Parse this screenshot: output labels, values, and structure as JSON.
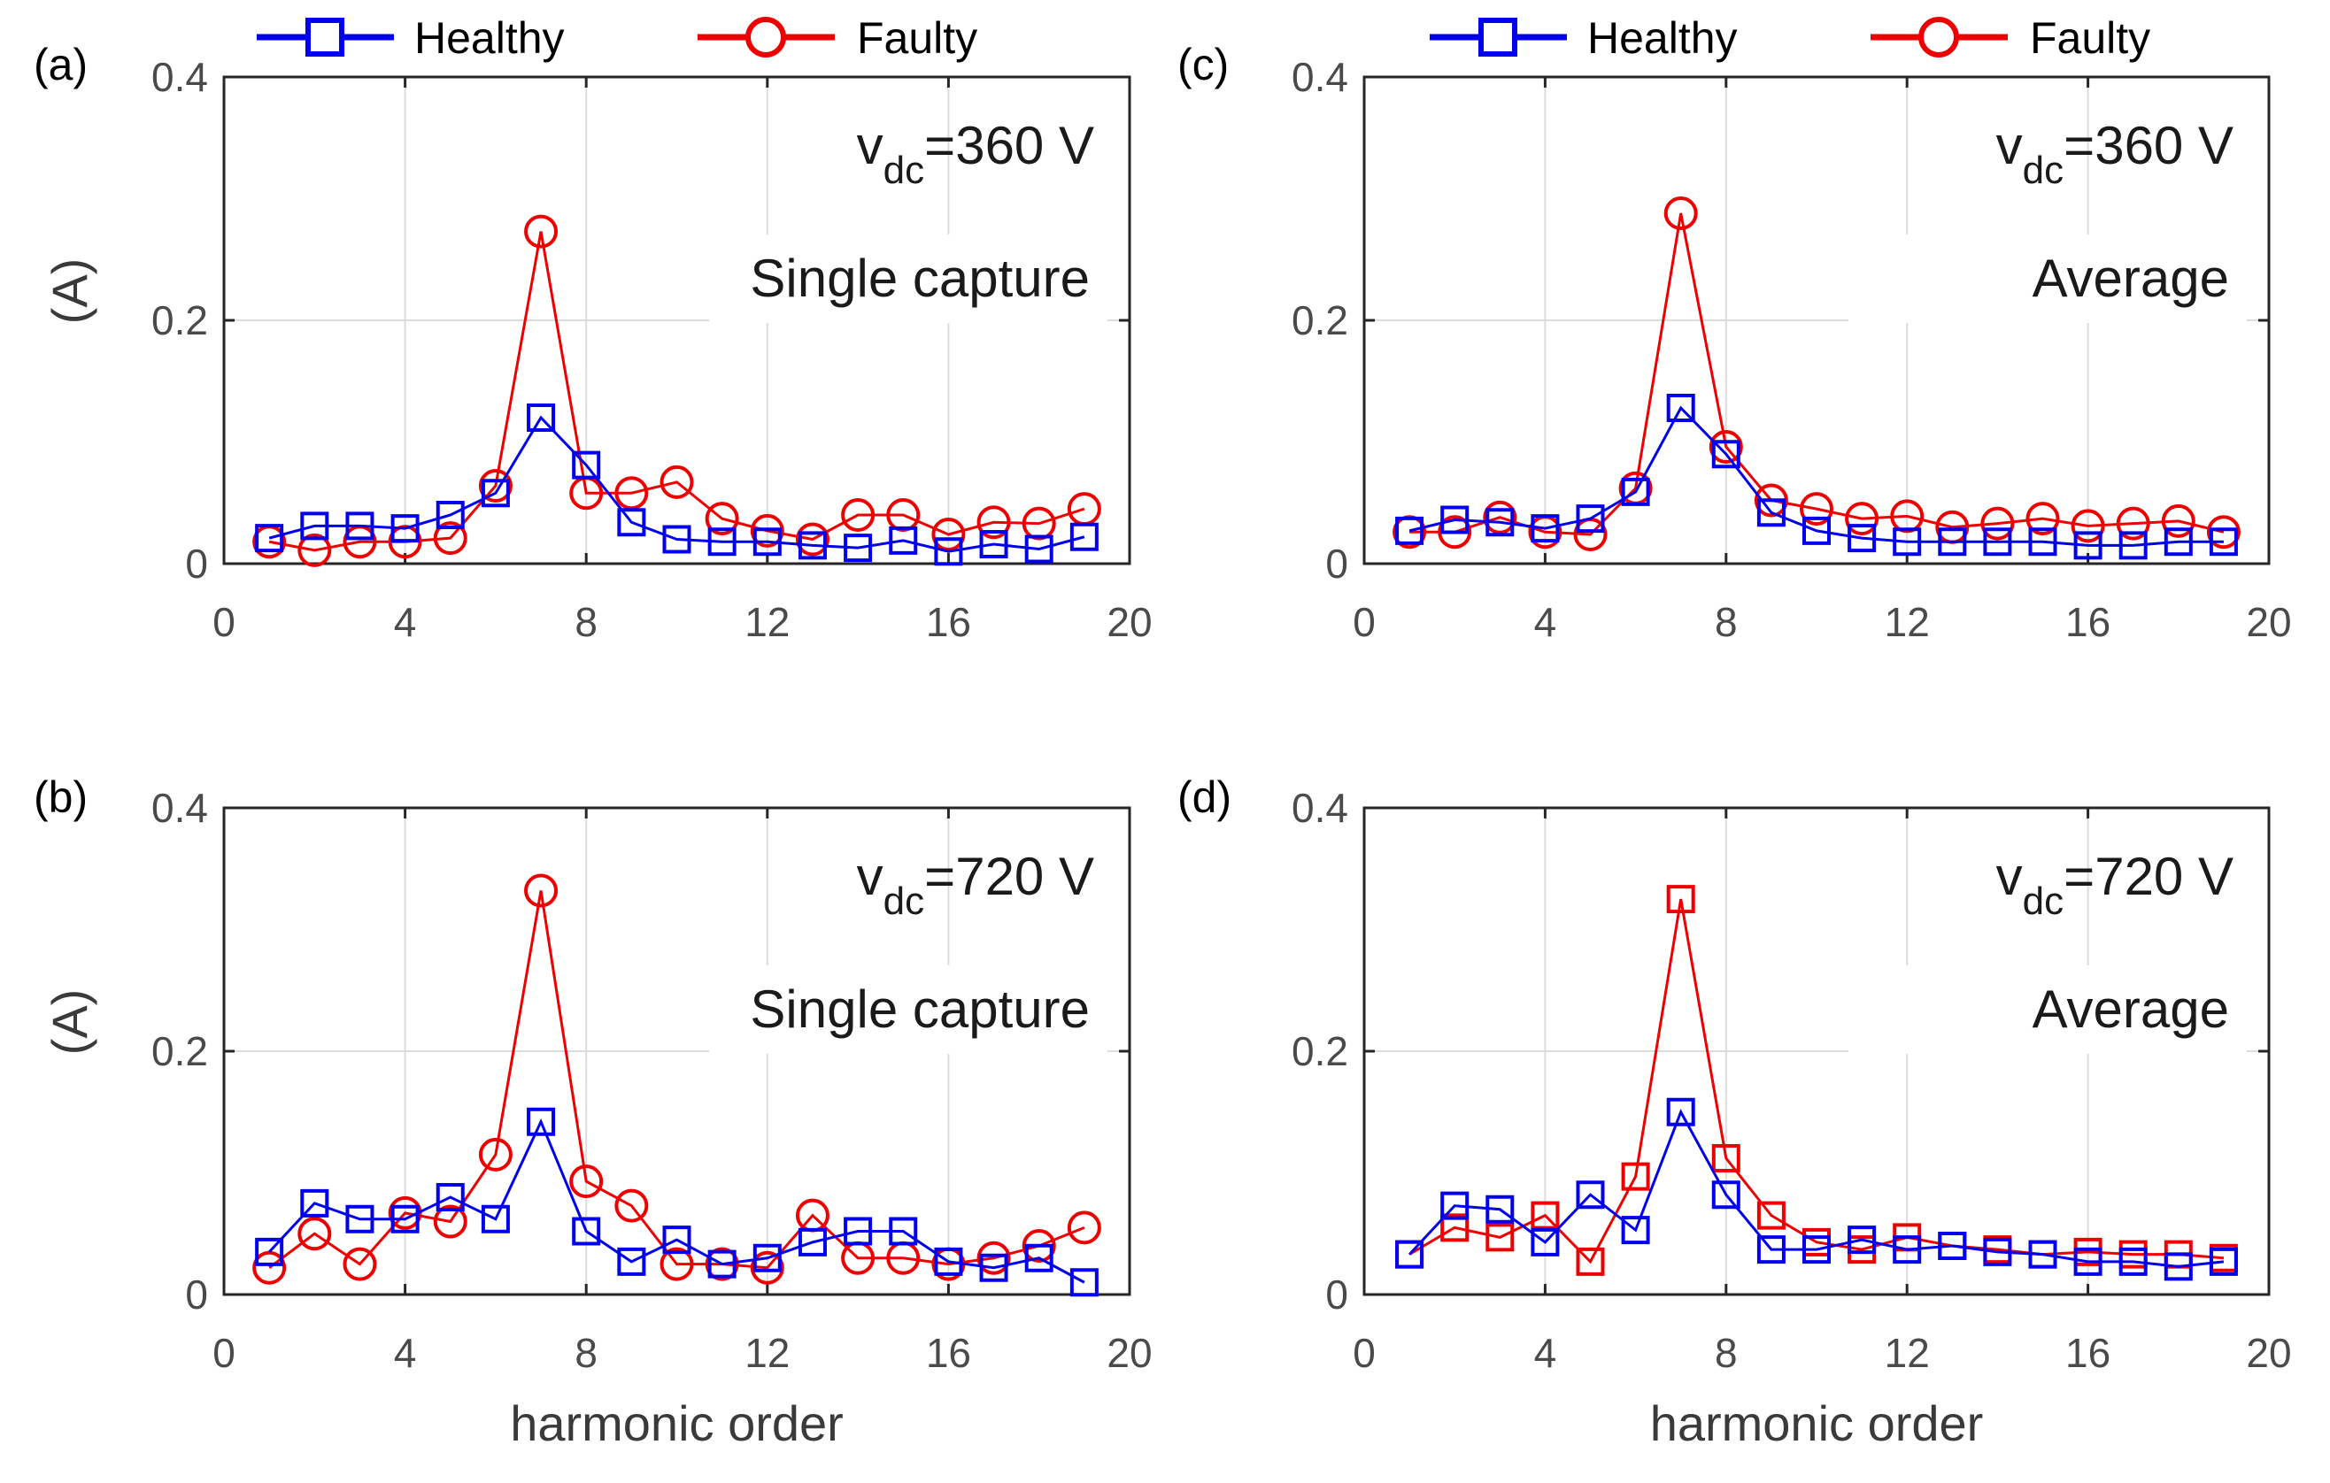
{
  "legend": {
    "healthy_label": "Healthy",
    "faulty_label": "Faulty",
    "healthy_color": "#0000ee",
    "faulty_color": "#ee0000"
  },
  "xlabel": "harmonic order",
  "ylabel": "(A)",
  "chart_data": [
    {
      "type": "line",
      "panel": "(a)",
      "annotation_v": "v",
      "annotation_sub": "dc",
      "annotation_eq": "=360 V",
      "annotation_mode": "Single capture",
      "xlim": [
        0,
        20
      ],
      "ylim": [
        0,
        0.4
      ],
      "xticks": [
        "0",
        "4",
        "8",
        "12",
        "16",
        "20"
      ],
      "yticks": [
        "0",
        "0.2",
        "0.4"
      ],
      "x": [
        1,
        2,
        3,
        4,
        5,
        6,
        7,
        8,
        9,
        10,
        11,
        12,
        13,
        14,
        15,
        16,
        17,
        18,
        19
      ],
      "series": [
        {
          "name": "Healthy",
          "marker": "square",
          "values": [
            0.021,
            0.031,
            0.031,
            0.029,
            0.04,
            0.058,
            0.12,
            0.081,
            0.034,
            0.02,
            0.018,
            0.018,
            0.015,
            0.013,
            0.019,
            0.01,
            0.016,
            0.012,
            0.022
          ]
        },
        {
          "name": "Faulty",
          "marker": "circle",
          "values": [
            0.018,
            0.011,
            0.018,
            0.018,
            0.021,
            0.064,
            0.273,
            0.058,
            0.058,
            0.067,
            0.037,
            0.027,
            0.02,
            0.04,
            0.04,
            0.024,
            0.034,
            0.033,
            0.045
          ]
        }
      ]
    },
    {
      "type": "line",
      "panel": "(b)",
      "annotation_v": "v",
      "annotation_sub": "dc",
      "annotation_eq": "=720 V",
      "annotation_mode": "Single capture",
      "xlim": [
        0,
        20
      ],
      "ylim": [
        0,
        0.4
      ],
      "xticks": [
        "0",
        "4",
        "8",
        "12",
        "16",
        "20"
      ],
      "yticks": [
        "0",
        "0.2",
        "0.4"
      ],
      "x": [
        1,
        2,
        3,
        4,
        5,
        6,
        7,
        8,
        9,
        10,
        11,
        12,
        13,
        14,
        15,
        16,
        17,
        18,
        19
      ],
      "series": [
        {
          "name": "Healthy",
          "marker": "square",
          "values": [
            0.035,
            0.075,
            0.062,
            0.062,
            0.08,
            0.062,
            0.142,
            0.052,
            0.027,
            0.045,
            0.025,
            0.03,
            0.043,
            0.052,
            0.052,
            0.027,
            0.022,
            0.03,
            0.01
          ]
        },
        {
          "name": "Faulty",
          "marker": "circle",
          "values": [
            0.022,
            0.05,
            0.025,
            0.067,
            0.06,
            0.115,
            0.332,
            0.093,
            0.073,
            0.025,
            0.025,
            0.022,
            0.065,
            0.03,
            0.03,
            0.025,
            0.03,
            0.04,
            0.055
          ]
        }
      ]
    },
    {
      "type": "line",
      "panel": "(c)",
      "annotation_v": "v",
      "annotation_sub": "dc",
      "annotation_eq": "=360 V",
      "annotation_mode": "Average",
      "xlim": [
        0,
        20
      ],
      "ylim": [
        0,
        0.4
      ],
      "xticks": [
        "0",
        "4",
        "8",
        "12",
        "16",
        "20"
      ],
      "yticks": [
        "0",
        "0.2",
        "0.4"
      ],
      "x": [
        1,
        2,
        3,
        4,
        5,
        6,
        7,
        8,
        9,
        10,
        11,
        12,
        13,
        14,
        15,
        16,
        17,
        18,
        19
      ],
      "series": [
        {
          "name": "Healthy",
          "marker": "square",
          "values": [
            0.027,
            0.036,
            0.034,
            0.029,
            0.037,
            0.059,
            0.128,
            0.09,
            0.042,
            0.027,
            0.021,
            0.018,
            0.018,
            0.018,
            0.018,
            0.015,
            0.015,
            0.018,
            0.018
          ]
        },
        {
          "name": "Faulty",
          "marker": "circle",
          "values": [
            0.026,
            0.026,
            0.038,
            0.026,
            0.024,
            0.062,
            0.288,
            0.096,
            0.052,
            0.045,
            0.037,
            0.039,
            0.03,
            0.033,
            0.037,
            0.031,
            0.033,
            0.035,
            0.026
          ]
        }
      ]
    },
    {
      "type": "line",
      "panel": "(d)",
      "annotation_v": "v",
      "annotation_sub": "dc",
      "annotation_eq": "=720 V",
      "annotation_mode": "Average",
      "xlim": [
        0,
        20
      ],
      "ylim": [
        0,
        0.4
      ],
      "xticks": [
        "0",
        "4",
        "8",
        "12",
        "16",
        "20"
      ],
      "yticks": [
        "0",
        "0.2",
        "0.4"
      ],
      "x": [
        1,
        2,
        3,
        4,
        5,
        6,
        7,
        8,
        9,
        10,
        11,
        12,
        13,
        14,
        15,
        16,
        17,
        18,
        19
      ],
      "series": [
        {
          "name": "Healthy",
          "marker": "square",
          "values": [
            0.033,
            0.073,
            0.07,
            0.043,
            0.082,
            0.053,
            0.15,
            0.082,
            0.037,
            0.037,
            0.045,
            0.037,
            0.04,
            0.035,
            0.033,
            0.027,
            0.027,
            0.023,
            0.027
          ]
        },
        {
          "name": "Faulty",
          "marker": "square",
          "values": [
            0.033,
            0.055,
            0.047,
            0.065,
            0.027,
            0.097,
            0.325,
            0.112,
            0.065,
            0.043,
            0.037,
            0.047,
            0.04,
            0.037,
            0.033,
            0.035,
            0.033,
            0.033,
            0.03
          ]
        }
      ]
    }
  ]
}
